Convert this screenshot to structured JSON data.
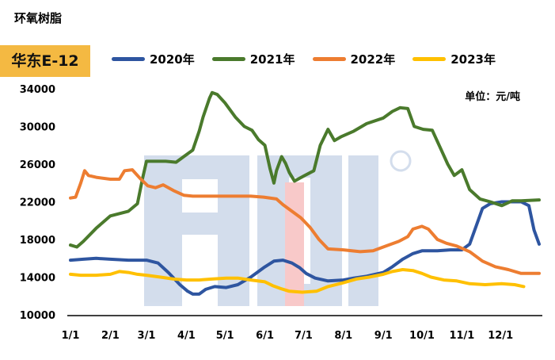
{
  "header": {
    "title": "环氧树脂"
  },
  "badge": {
    "label": "华东E-12"
  },
  "unit_label": "单位：元/吨",
  "colors": {
    "s2020": "#2e55a0",
    "s2021": "#4a7a2c",
    "s2022": "#ed7d31",
    "s2023": "#ffc000",
    "badge": "#f4b942"
  },
  "chart_data": {
    "type": "line",
    "title": "环氧树脂",
    "subtitle": "华东E-12",
    "unit": "单位：元/吨",
    "xlabel": "",
    "ylabel": "",
    "x_tick_labels": [
      "1/1",
      "2/1",
      "3/1",
      "4/1",
      "5/1",
      "6/1",
      "7/1",
      "8/1",
      "9/1",
      "10/1",
      "11/1",
      "12/1"
    ],
    "y_tick_labels": [
      "10000",
      "14000",
      "18000",
      "22000",
      "26000",
      "30000",
      "34000"
    ],
    "ylim": [
      10000,
      34000
    ],
    "xlim_days": [
      0,
      364
    ],
    "grid": false,
    "legend_position": "top",
    "series": [
      {
        "name": "2020年",
        "color": "#2e55a0",
        "points": [
          [
            0,
            15800
          ],
          [
            10,
            15900
          ],
          [
            20,
            16000
          ],
          [
            31,
            15900
          ],
          [
            45,
            15800
          ],
          [
            59,
            15800
          ],
          [
            68,
            15500
          ],
          [
            76,
            14500
          ],
          [
            85,
            13200
          ],
          [
            91,
            12500
          ],
          [
            95,
            12200
          ],
          [
            100,
            12200
          ],
          [
            105,
            12700
          ],
          [
            112,
            13000
          ],
          [
            121,
            12900
          ],
          [
            130,
            13200
          ],
          [
            140,
            14000
          ],
          [
            150,
            15000
          ],
          [
            158,
            15700
          ],
          [
            165,
            15800
          ],
          [
            172,
            15500
          ],
          [
            178,
            15000
          ],
          [
            183,
            14400
          ],
          [
            190,
            13900
          ],
          [
            200,
            13600
          ],
          [
            212,
            13700
          ],
          [
            220,
            13900
          ],
          [
            230,
            14100
          ],
          [
            243,
            14500
          ],
          [
            250,
            15100
          ],
          [
            258,
            15900
          ],
          [
            266,
            16500
          ],
          [
            273,
            16800
          ],
          [
            285,
            16800
          ],
          [
            295,
            16900
          ],
          [
            304,
            16900
          ],
          [
            310,
            17500
          ],
          [
            315,
            19400
          ],
          [
            320,
            21300
          ],
          [
            326,
            21800
          ],
          [
            335,
            22000
          ],
          [
            350,
            22000
          ],
          [
            356,
            21600
          ],
          [
            360,
            19000
          ],
          [
            364,
            17500
          ]
        ]
      },
      {
        "name": "2021年",
        "color": "#4a7a2c",
        "points": [
          [
            0,
            17400
          ],
          [
            5,
            17200
          ],
          [
            10,
            17800
          ],
          [
            20,
            19200
          ],
          [
            31,
            20500
          ],
          [
            45,
            21000
          ],
          [
            52,
            21800
          ],
          [
            56,
            24500
          ],
          [
            59,
            26300
          ],
          [
            66,
            26300
          ],
          [
            74,
            26300
          ],
          [
            82,
            26200
          ],
          [
            88,
            26800
          ],
          [
            95,
            27500
          ],
          [
            100,
            29500
          ],
          [
            103,
            31000
          ],
          [
            108,
            33000
          ],
          [
            110,
            33600
          ],
          [
            114,
            33400
          ],
          [
            120,
            32500
          ],
          [
            128,
            31000
          ],
          [
            135,
            30000
          ],
          [
            141,
            29600
          ],
          [
            146,
            28600
          ],
          [
            151,
            28000
          ],
          [
            155,
            25500
          ],
          [
            158,
            24000
          ],
          [
            160,
            25300
          ],
          [
            164,
            26800
          ],
          [
            167,
            26100
          ],
          [
            170,
            25100
          ],
          [
            174,
            24200
          ],
          [
            178,
            24500
          ],
          [
            182,
            24800
          ],
          [
            189,
            25300
          ],
          [
            194,
            28000
          ],
          [
            200,
            29700
          ],
          [
            205,
            28500
          ],
          [
            210,
            28900
          ],
          [
            220,
            29500
          ],
          [
            230,
            30300
          ],
          [
            243,
            30900
          ],
          [
            250,
            31600
          ],
          [
            256,
            32000
          ],
          [
            262,
            31900
          ],
          [
            267,
            30000
          ],
          [
            274,
            29700
          ],
          [
            281,
            29600
          ],
          [
            288,
            27500
          ],
          [
            293,
            26000
          ],
          [
            298,
            24800
          ],
          [
            304,
            25400
          ],
          [
            310,
            23300
          ],
          [
            318,
            22300
          ],
          [
            326,
            22000
          ],
          [
            335,
            21600
          ],
          [
            343,
            22100
          ],
          [
            350,
            22100
          ],
          [
            364,
            22200
          ]
        ]
      },
      {
        "name": "2022年",
        "color": "#ed7d31",
        "points": [
          [
            0,
            22400
          ],
          [
            4,
            22500
          ],
          [
            8,
            24000
          ],
          [
            11,
            25300
          ],
          [
            14,
            24800
          ],
          [
            20,
            24600
          ],
          [
            31,
            24400
          ],
          [
            38,
            24400
          ],
          [
            42,
            25300
          ],
          [
            48,
            25400
          ],
          [
            54,
            24500
          ],
          [
            60,
            23700
          ],
          [
            66,
            23500
          ],
          [
            72,
            23800
          ],
          [
            80,
            23200
          ],
          [
            88,
            22700
          ],
          [
            95,
            22600
          ],
          [
            110,
            22600
          ],
          [
            125,
            22600
          ],
          [
            140,
            22600
          ],
          [
            150,
            22500
          ],
          [
            160,
            22300
          ],
          [
            165,
            21700
          ],
          [
            172,
            21000
          ],
          [
            179,
            20300
          ],
          [
            186,
            19300
          ],
          [
            193,
            18000
          ],
          [
            200,
            17000
          ],
          [
            212,
            16900
          ],
          [
            225,
            16700
          ],
          [
            235,
            16800
          ],
          [
            245,
            17300
          ],
          [
            255,
            17800
          ],
          [
            262,
            18300
          ],
          [
            266,
            19100
          ],
          [
            273,
            19400
          ],
          [
            278,
            19100
          ],
          [
            285,
            18000
          ],
          [
            292,
            17600
          ],
          [
            300,
            17300
          ],
          [
            310,
            16700
          ],
          [
            320,
            15700
          ],
          [
            330,
            15100
          ],
          [
            340,
            14800
          ],
          [
            350,
            14400
          ],
          [
            364,
            14400
          ]
        ]
      },
      {
        "name": "2023年",
        "color": "#ffc000",
        "points": [
          [
            0,
            14300
          ],
          [
            8,
            14200
          ],
          [
            20,
            14200
          ],
          [
            31,
            14300
          ],
          [
            38,
            14600
          ],
          [
            45,
            14500
          ],
          [
            52,
            14300
          ],
          [
            59,
            14200
          ],
          [
            70,
            14000
          ],
          [
            80,
            13800
          ],
          [
            90,
            13700
          ],
          [
            100,
            13700
          ],
          [
            110,
            13800
          ],
          [
            121,
            13900
          ],
          [
            130,
            13900
          ],
          [
            140,
            13700
          ],
          [
            151,
            13500
          ],
          [
            157,
            13100
          ],
          [
            163,
            12800
          ],
          [
            170,
            12500
          ],
          [
            180,
            12400
          ],
          [
            191,
            12500
          ],
          [
            200,
            13000
          ],
          [
            212,
            13400
          ],
          [
            222,
            13800
          ],
          [
            232,
            14000
          ],
          [
            243,
            14300
          ],
          [
            250,
            14600
          ],
          [
            258,
            14800
          ],
          [
            266,
            14700
          ],
          [
            273,
            14400
          ],
          [
            280,
            14000
          ],
          [
            290,
            13700
          ],
          [
            300,
            13600
          ],
          [
            310,
            13300
          ],
          [
            322,
            13200
          ],
          [
            335,
            13300
          ],
          [
            345,
            13200
          ],
          [
            352,
            13000
          ]
        ]
      }
    ]
  }
}
